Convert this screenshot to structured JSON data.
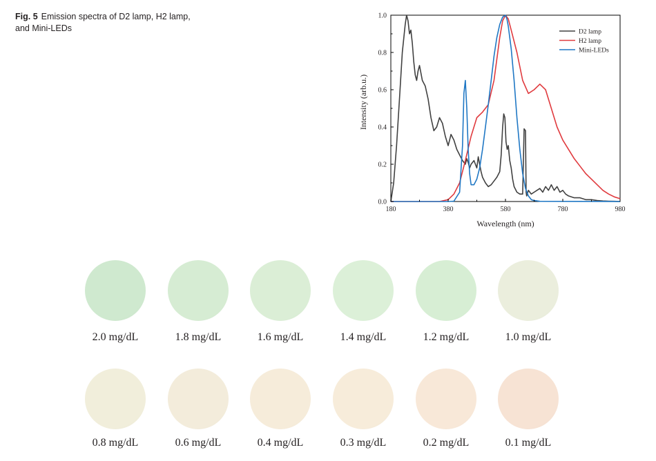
{
  "caption": {
    "label": "Fig. 5",
    "text": "Emission spectra of D2 lamp, H2 lamp, and Mini-LEDs"
  },
  "chart_data": {
    "type": "line",
    "xlabel": "Wavelength (nm)",
    "ylabel": "Intensity (arb.u.)",
    "xlim": [
      180,
      980
    ],
    "ylim": [
      0,
      1.0
    ],
    "xticks": [
      180,
      380,
      580,
      780,
      980
    ],
    "yticks": [
      0.0,
      0.2,
      0.4,
      0.6,
      0.8,
      1.0
    ],
    "ytick_labels": [
      "0.0",
      "0.2",
      "0.4",
      "0.6",
      "0.8",
      "1.0"
    ],
    "legend_position": "top-right",
    "series": [
      {
        "name": "D2 lamp",
        "color": "#404040",
        "x": [
          180,
          190,
          200,
          210,
          220,
          230,
          235,
          240,
          245,
          250,
          255,
          260,
          265,
          270,
          275,
          280,
          290,
          300,
          310,
          320,
          330,
          340,
          350,
          360,
          370,
          380,
          385,
          390,
          400,
          410,
          420,
          430,
          440,
          445,
          450,
          455,
          460,
          470,
          480,
          485,
          490,
          495,
          500,
          510,
          520,
          530,
          540,
          550,
          560,
          565,
          570,
          574,
          578,
          582,
          586,
          590,
          595,
          600,
          605,
          610,
          620,
          630,
          640,
          645,
          650,
          652,
          654,
          656,
          658,
          660,
          670,
          680,
          690,
          700,
          710,
          720,
          730,
          740,
          750,
          760,
          770,
          780,
          790,
          800,
          820,
          840,
          860,
          880,
          900,
          920,
          940,
          960,
          980
        ],
        "y": [
          0.0,
          0.1,
          0.3,
          0.55,
          0.8,
          0.95,
          1.0,
          0.97,
          0.9,
          0.92,
          0.85,
          0.75,
          0.68,
          0.65,
          0.7,
          0.73,
          0.65,
          0.62,
          0.55,
          0.45,
          0.38,
          0.4,
          0.45,
          0.42,
          0.35,
          0.3,
          0.33,
          0.36,
          0.33,
          0.28,
          0.25,
          0.22,
          0.2,
          0.23,
          0.21,
          0.18,
          0.2,
          0.22,
          0.18,
          0.24,
          0.2,
          0.16,
          0.13,
          0.1,
          0.08,
          0.09,
          0.11,
          0.13,
          0.16,
          0.25,
          0.4,
          0.47,
          0.45,
          0.32,
          0.28,
          0.3,
          0.22,
          0.18,
          0.12,
          0.08,
          0.05,
          0.04,
          0.04,
          0.39,
          0.38,
          0.05,
          0.03,
          0.04,
          0.05,
          0.06,
          0.04,
          0.05,
          0.06,
          0.07,
          0.05,
          0.08,
          0.06,
          0.09,
          0.06,
          0.08,
          0.05,
          0.06,
          0.04,
          0.03,
          0.02,
          0.02,
          0.01,
          0.01,
          0.005,
          0.003,
          0.002,
          0.001,
          0.0
        ]
      },
      {
        "name": "H2 lamp",
        "color": "#e03a3e",
        "x": [
          180,
          300,
          350,
          380,
          400,
          420,
          440,
          460,
          480,
          500,
          520,
          540,
          560,
          570,
          580,
          590,
          600,
          620,
          640,
          660,
          680,
          700,
          720,
          740,
          760,
          780,
          800,
          820,
          840,
          860,
          880,
          900,
          920,
          940,
          960,
          980
        ],
        "y": [
          0.0,
          0.0,
          0.0,
          0.01,
          0.04,
          0.1,
          0.22,
          0.35,
          0.45,
          0.48,
          0.52,
          0.65,
          0.88,
          0.97,
          1.0,
          0.98,
          0.92,
          0.8,
          0.65,
          0.58,
          0.6,
          0.63,
          0.6,
          0.5,
          0.4,
          0.33,
          0.28,
          0.23,
          0.19,
          0.15,
          0.12,
          0.09,
          0.06,
          0.04,
          0.025,
          0.015
        ]
      },
      {
        "name": "Mini-LEDs",
        "color": "#1f77c4",
        "x": [
          180,
          380,
          400,
          420,
          430,
          435,
          440,
          445,
          450,
          455,
          460,
          470,
          480,
          490,
          500,
          510,
          520,
          530,
          540,
          550,
          560,
          570,
          580,
          585,
          590,
          600,
          610,
          620,
          630,
          640,
          650,
          660,
          670,
          680,
          700,
          980
        ],
        "y": [
          0.0,
          0.0,
          0.002,
          0.05,
          0.3,
          0.58,
          0.65,
          0.5,
          0.28,
          0.15,
          0.09,
          0.09,
          0.12,
          0.18,
          0.28,
          0.4,
          0.52,
          0.65,
          0.78,
          0.88,
          0.95,
          0.99,
          1.0,
          0.98,
          0.94,
          0.82,
          0.65,
          0.45,
          0.28,
          0.15,
          0.07,
          0.03,
          0.01,
          0.005,
          0.001,
          0.0
        ]
      }
    ]
  },
  "swatches": {
    "row1": [
      {
        "label": "2.0 mg/dL",
        "color": "#cfe9cf"
      },
      {
        "label": "1.8 mg/dL",
        "color": "#d6ecd3"
      },
      {
        "label": "1.6 mg/dL",
        "color": "#dbeed6"
      },
      {
        "label": "1.4 mg/dL",
        "color": "#dcf0d8"
      },
      {
        "label": "1.2 mg/dL",
        "color": "#d7eed4"
      },
      {
        "label": "1.0 mg/dL",
        "color": "#ebeedd"
      }
    ],
    "row2": [
      {
        "label": "0.8 mg/dL",
        "color": "#f1eedb"
      },
      {
        "label": "0.6 mg/dL",
        "color": "#f3ecdb"
      },
      {
        "label": "0.4 mg/dL",
        "color": "#f6ecda"
      },
      {
        "label": "0.3 mg/dL",
        "color": "#f7ecda"
      },
      {
        "label": "0.2 mg/dL",
        "color": "#f8e8d8"
      },
      {
        "label": "0.1 mg/dL",
        "color": "#f7e3d4"
      }
    ]
  }
}
